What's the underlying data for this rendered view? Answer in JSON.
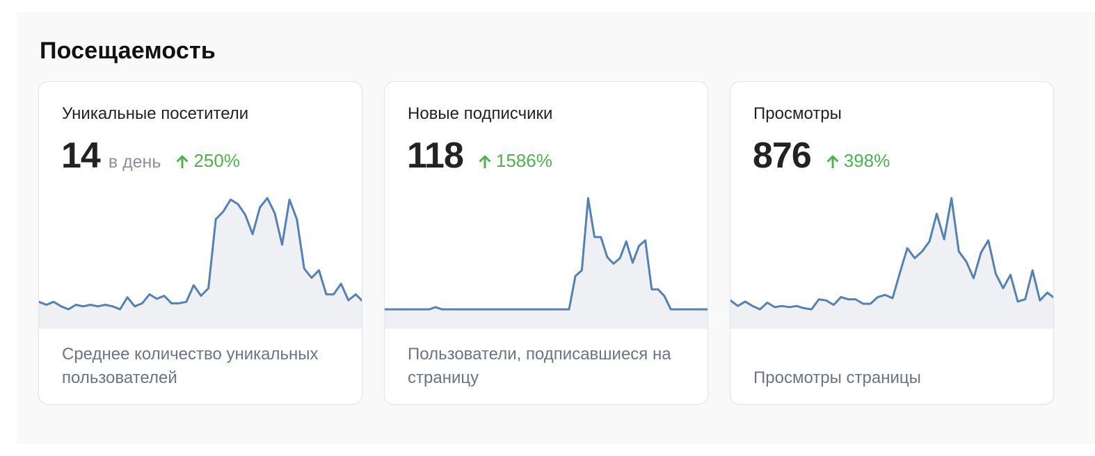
{
  "section": {
    "title": "Посещаемость"
  },
  "colors": {
    "line": "#5181b8",
    "area": "#eef0f3",
    "positive": "#4bb34b"
  },
  "cards": [
    {
      "title": "Уникальные посетители",
      "value": "14",
      "unit": "в день",
      "delta": "250%",
      "delta_icon": "arrow-up-icon",
      "description": "Среднее количество уникальных пользователей",
      "chart_data": {
        "type": "area",
        "values": [
          5,
          3,
          5,
          2,
          0,
          3,
          2,
          3,
          2,
          3,
          2,
          0,
          8,
          2,
          4,
          10,
          7,
          9,
          4,
          4,
          5,
          16,
          9,
          14,
          60,
          65,
          73,
          70,
          63,
          50,
          68,
          74,
          64,
          43,
          73,
          60,
          27,
          21,
          26,
          10,
          10,
          17,
          6,
          10,
          5
        ]
      }
    },
    {
      "title": "Новые подписчики",
      "value": "118",
      "unit": "",
      "delta": "1586%",
      "delta_icon": "arrow-up-icon",
      "description": "Пользователи, подписавшиеся на страницу",
      "chart_data": {
        "type": "area",
        "values": [
          0,
          0,
          0,
          0,
          0,
          0,
          0,
          0,
          2,
          0,
          0,
          0,
          0,
          0,
          0,
          0,
          0,
          0,
          0,
          0,
          0,
          0,
          0,
          0,
          0,
          0,
          0,
          0,
          0,
          0,
          30,
          35,
          100,
          65,
          65,
          47,
          41,
          46,
          61,
          42,
          57,
          62,
          18,
          18,
          12,
          0,
          0,
          0,
          0,
          0,
          0,
          0
        ]
      }
    },
    {
      "title": "Просмотры",
      "value": "876",
      "unit": "",
      "delta": "398%",
      "delta_icon": "arrow-up-icon",
      "description": "Просмотры страницы",
      "chart_data": {
        "type": "area",
        "values": [
          8,
          3,
          7,
          3,
          0,
          6,
          2,
          3,
          2,
          3,
          1,
          0,
          9,
          8,
          4,
          11,
          9,
          9,
          5,
          5,
          11,
          13,
          10,
          33,
          55,
          46,
          52,
          61,
          86,
          63,
          100,
          52,
          43,
          28,
          51,
          62,
          32,
          19,
          31,
          7,
          9,
          35,
          8,
          15,
          10
        ]
      }
    }
  ]
}
